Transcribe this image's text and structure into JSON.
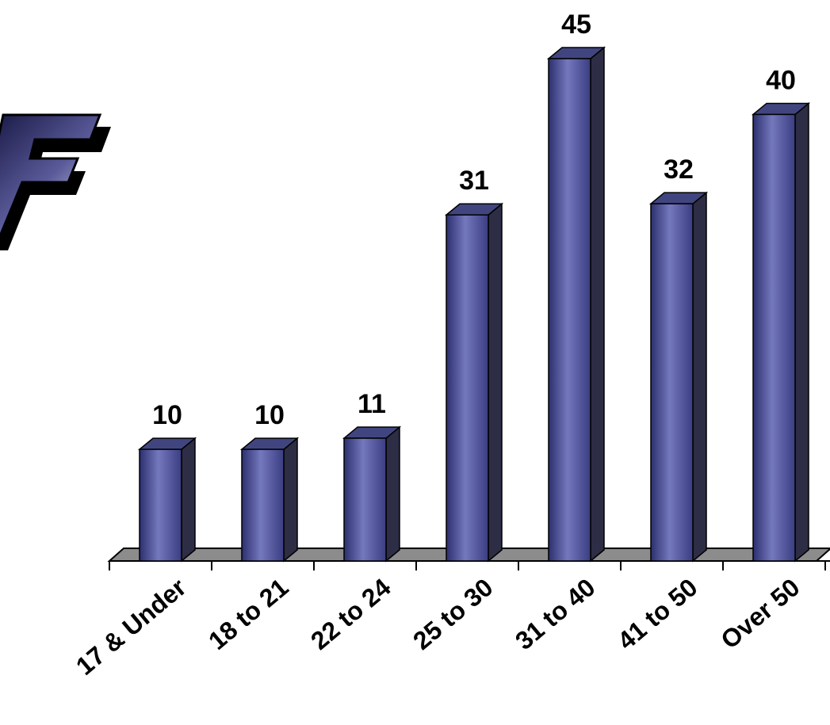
{
  "logo": {
    "icon": "ff-logo-icon",
    "colors": [
      "#1a1a4e",
      "#ffffff",
      "#000000"
    ]
  },
  "colors": {
    "bar_front": "#6e72b8",
    "bar_front_dark": "#2c2f6e",
    "bar_side": "#2d2d45",
    "bar_top": "#41457f",
    "floor": "#8c8c8c"
  },
  "chart_data": {
    "type": "bar",
    "categories": [
      "17 & Under",
      "18 to 21",
      "22 to 24",
      "25 to 30",
      "31 to 40",
      "41 to 50",
      "Over 50"
    ],
    "values": [
      10,
      10,
      11,
      31,
      45,
      32,
      40
    ],
    "data_labels": [
      "10",
      "10",
      "11",
      "31",
      "45",
      "32",
      "40"
    ],
    "title": "",
    "xlabel": "",
    "ylabel": "",
    "ylim": [
      0,
      45
    ],
    "grid": false,
    "legend": "none",
    "style": "3d-column"
  }
}
